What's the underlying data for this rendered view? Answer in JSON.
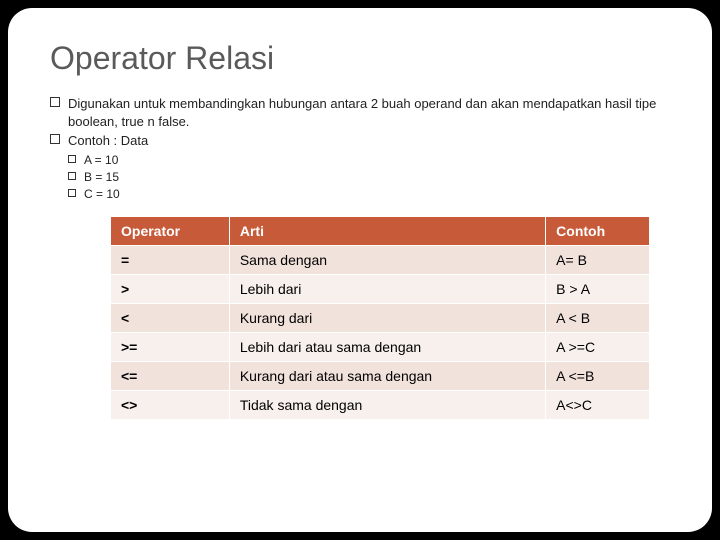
{
  "title": "Operator Relasi",
  "bullets": [
    {
      "level": 1,
      "text": "Digunakan untuk membandingkan hubungan antara 2 buah operand dan akan mendapatkan hasil tipe boolean, true n false."
    },
    {
      "level": 1,
      "text": "Contoh : Data"
    },
    {
      "level": 2,
      "text": "A = 10"
    },
    {
      "level": 2,
      "text": "B = 15"
    },
    {
      "level": 2,
      "text": "C = 10"
    }
  ],
  "table": {
    "columns": [
      "Operator",
      "Arti",
      "Contoh"
    ],
    "rows": [
      [
        "=",
        "Sama dengan",
        "A= B"
      ],
      [
        ">",
        "Lebih dari",
        "B > A"
      ],
      [
        "<",
        "Kurang dari",
        "A < B"
      ],
      [
        ">=",
        "Lebih dari atau sama dengan",
        "A >=C"
      ],
      [
        "<=",
        "Kurang dari atau sama dengan",
        "A <=B"
      ],
      [
        "<>",
        "Tidak sama dengan",
        "A<>C"
      ]
    ],
    "header_bg": "#c75b39",
    "header_fg": "#ffffff",
    "row_odd_bg": "#f2e2dc",
    "row_even_bg": "#f8f0ec",
    "font_size": 14
  },
  "colors": {
    "slide_bg": "#ffffff",
    "outer_bg": "#000000",
    "title_color": "#5a5a5a"
  }
}
